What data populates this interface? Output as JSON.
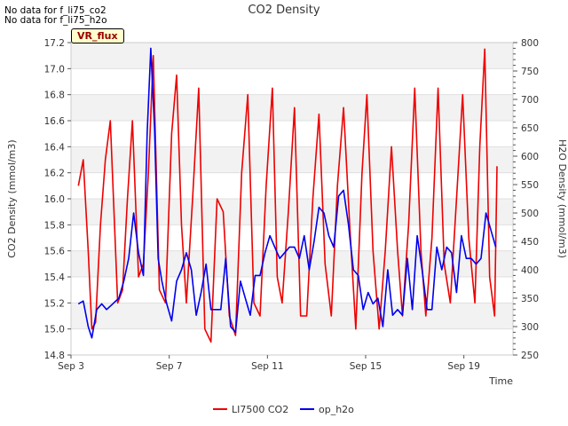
{
  "notes": [
    "No data for f_li75_co2",
    "No data for f_li75_h2o"
  ],
  "badge": "VR_flux",
  "chart_data": {
    "type": "line",
    "title": "CO2 Density",
    "xlabel": "Time",
    "ylabel": "CO2 Density (mmol/m3)",
    "y2label": "H2O Density (mmol/m3)",
    "x_ticks": [
      "Sep 3",
      "Sep 7",
      "Sep 11",
      "Sep 15",
      "Sep 19"
    ],
    "x_tick_values": [
      3,
      7,
      11,
      15,
      19
    ],
    "xlim": [
      3,
      21
    ],
    "ylim": [
      14.8,
      17.2
    ],
    "y_ticks": [
      14.8,
      15.0,
      15.2,
      15.4,
      15.6,
      15.8,
      16.0,
      16.2,
      16.4,
      16.6,
      16.8,
      17.0,
      17.2
    ],
    "y2lim": [
      250,
      800
    ],
    "y2_ticks": [
      250,
      300,
      350,
      400,
      450,
      500,
      550,
      600,
      650,
      700,
      750,
      800
    ],
    "grid": "horizontal bands",
    "legend": "bottom-center",
    "series": [
      {
        "name": "LI7500 CO2",
        "axis": "left",
        "color": "#ee0000",
        "x": [
          3.3,
          3.5,
          3.7,
          3.85,
          4.0,
          4.2,
          4.4,
          4.6,
          4.9,
          5.1,
          5.3,
          5.5,
          5.75,
          5.95,
          6.15,
          6.35,
          6.6,
          6.85,
          7.1,
          7.3,
          7.5,
          7.7,
          7.95,
          8.2,
          8.45,
          8.7,
          8.95,
          9.2,
          9.45,
          9.7,
          9.95,
          10.2,
          10.45,
          10.7,
          10.95,
          11.2,
          11.4,
          11.6,
          11.85,
          12.1,
          12.35,
          12.6,
          12.85,
          13.1,
          13.35,
          13.6,
          13.85,
          14.1,
          14.35,
          14.6,
          14.85,
          15.05,
          15.3,
          15.55,
          15.8,
          16.05,
          16.3,
          16.5,
          16.75,
          17.0,
          17.25,
          17.45,
          17.7,
          17.95,
          18.2,
          18.45,
          18.7,
          18.95,
          19.2,
          19.45,
          19.65,
          19.85,
          20.05,
          20.25,
          20.35
        ],
        "y": [
          16.1,
          16.3,
          15.6,
          15.0,
          15.05,
          15.8,
          16.3,
          16.6,
          15.2,
          15.3,
          16.0,
          16.6,
          15.4,
          15.5,
          16.2,
          17.1,
          15.3,
          15.2,
          16.5,
          16.95,
          15.8,
          15.2,
          16.0,
          16.85,
          15.0,
          14.9,
          16.0,
          15.9,
          15.1,
          14.95,
          16.2,
          16.8,
          15.2,
          15.1,
          16.1,
          16.85,
          15.4,
          15.2,
          15.9,
          16.7,
          15.1,
          15.1,
          16.0,
          16.65,
          15.5,
          15.1,
          16.1,
          16.7,
          15.8,
          15.0,
          16.2,
          16.8,
          15.6,
          15.0,
          15.6,
          16.4,
          15.6,
          15.1,
          15.8,
          16.85,
          15.6,
          15.1,
          15.7,
          16.85,
          15.5,
          15.2,
          16.0,
          16.8,
          15.7,
          15.2,
          16.4,
          17.15,
          15.4,
          15.1,
          16.25
        ]
      },
      {
        "name": "op_h2o",
        "axis": "right",
        "color": "#0000ee",
        "x": [
          3.3,
          3.5,
          3.7,
          3.85,
          4.05,
          4.25,
          4.45,
          4.7,
          4.95,
          5.15,
          5.35,
          5.55,
          5.75,
          5.95,
          6.1,
          6.25,
          6.4,
          6.55,
          6.7,
          6.9,
          7.1,
          7.3,
          7.5,
          7.7,
          7.9,
          8.1,
          8.3,
          8.5,
          8.7,
          8.9,
          9.1,
          9.3,
          9.5,
          9.7,
          9.9,
          10.1,
          10.3,
          10.5,
          10.7,
          10.9,
          11.1,
          11.3,
          11.5,
          11.7,
          11.9,
          12.1,
          12.3,
          12.5,
          12.7,
          12.9,
          13.1,
          13.3,
          13.5,
          13.7,
          13.9,
          14.1,
          14.3,
          14.5,
          14.7,
          14.9,
          15.1,
          15.3,
          15.5,
          15.7,
          15.9,
          16.1,
          16.3,
          16.5,
          16.7,
          16.9,
          17.1,
          17.3,
          17.5,
          17.7,
          17.9,
          18.1,
          18.3,
          18.5,
          18.7,
          18.9,
          19.1,
          19.3,
          19.5,
          19.7,
          19.9,
          20.1,
          20.3
        ],
        "y": [
          340,
          345,
          300,
          280,
          330,
          340,
          330,
          340,
          350,
          380,
          420,
          500,
          430,
          390,
          640,
          790,
          650,
          420,
          380,
          340,
          310,
          380,
          400,
          430,
          400,
          320,
          360,
          410,
          330,
          330,
          330,
          420,
          300,
          290,
          380,
          350,
          320,
          390,
          390,
          430,
          460,
          440,
          420,
          430,
          440,
          440,
          420,
          460,
          400,
          450,
          510,
          500,
          460,
          440,
          530,
          540,
          480,
          400,
          390,
          330,
          360,
          340,
          350,
          300,
          400,
          320,
          330,
          320,
          420,
          330,
          460,
          400,
          330,
          330,
          440,
          400,
          440,
          430,
          360,
          460,
          420,
          420,
          410,
          420,
          500,
          470,
          440
        ]
      }
    ]
  }
}
